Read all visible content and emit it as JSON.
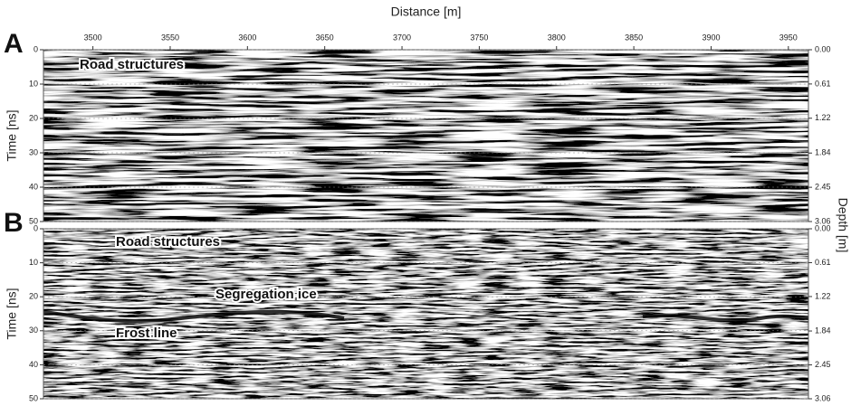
{
  "chart_data": [
    {
      "type": "radargram",
      "panel_label": "A",
      "xlabel": "Distance [m]",
      "ylabel": "Time [ns]",
      "y2label": "Depth [m]",
      "xlim": [
        3468,
        3963
      ],
      "xticks": [
        3500,
        3550,
        3600,
        3650,
        3700,
        3750,
        3800,
        3850,
        3900,
        3950
      ],
      "ylim": [
        0,
        50
      ],
      "yticks": [
        0,
        10,
        20,
        30,
        40,
        50
      ],
      "y_inverted": true,
      "y2lim": [
        0,
        3.06
      ],
      "y2ticks": [
        {
          "value": 0,
          "label": "0.00"
        },
        0.61,
        1.22,
        1.84,
        2.45,
        3.06
      ],
      "annotations": [
        "Road structures"
      ]
    },
    {
      "type": "radargram",
      "panel_label": "B",
      "ylabel": "Time [ns]",
      "ylim": [
        0,
        50
      ],
      "yticks": [
        0,
        10,
        20,
        30,
        40,
        50
      ],
      "y_inverted": true,
      "y2lim": [
        0,
        3.06
      ],
      "y2ticks": [
        {
          "value": 0,
          "label": "0.00"
        },
        0.61,
        1.22,
        1.84,
        2.45,
        3.06
      ],
      "annotations": [
        "Road structures",
        "Segregation ice",
        "Frost line"
      ]
    }
  ]
}
